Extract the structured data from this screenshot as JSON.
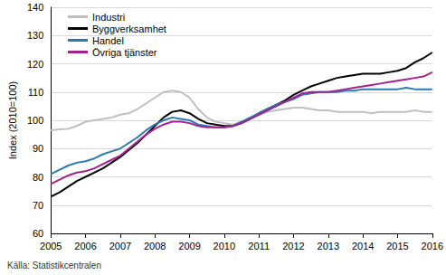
{
  "chart_data": {
    "type": "line",
    "y_label": "Index (2010=100)",
    "source": "Källa: Statistikcentralen",
    "x": [
      2005,
      2005.25,
      2005.5,
      2005.75,
      2006,
      2006.25,
      2006.5,
      2006.75,
      2007,
      2007.25,
      2007.5,
      2007.75,
      2008,
      2008.25,
      2008.5,
      2008.75,
      2009,
      2009.25,
      2009.5,
      2009.75,
      2010,
      2010.25,
      2010.5,
      2010.75,
      2011,
      2011.25,
      2011.5,
      2011.75,
      2012,
      2012.25,
      2012.5,
      2012.75,
      2013,
      2013.25,
      2013.5,
      2013.75,
      2014,
      2014.25,
      2014.5,
      2014.75,
      2015,
      2015.25,
      2015.5,
      2015.75,
      2016
    ],
    "series": [
      {
        "name": "Industri",
        "color": "#bfbfbf",
        "values": [
          96.5,
          96.8,
          97,
          98,
          99.5,
          100,
          100.5,
          101,
          102,
          102.5,
          104,
          106,
          108,
          110,
          110.5,
          110,
          108,
          104,
          101,
          99.5,
          99,
          98.5,
          99.5,
          100.5,
          102,
          103,
          103.5,
          104,
          104.5,
          104.5,
          104,
          103.5,
          103.5,
          103,
          103,
          103,
          103,
          102.5,
          103,
          103,
          103,
          103,
          103.5,
          103,
          103
        ]
      },
      {
        "name": "Byggverksamhet",
        "color": "#000000",
        "values": [
          73,
          74.5,
          76.5,
          78.5,
          80,
          81.5,
          83,
          85,
          87,
          89.5,
          92,
          95,
          98,
          101,
          103,
          103.5,
          102.5,
          100.5,
          99,
          98.5,
          98,
          98,
          99,
          100.5,
          102.5,
          104,
          105.5,
          107,
          109,
          110.5,
          112,
          113,
          114,
          115,
          115.5,
          116,
          116.5,
          116.5,
          116.5,
          117,
          117.5,
          118.5,
          120.5,
          122,
          124
        ]
      },
      {
        "name": "Handel",
        "color": "#2a7ab5",
        "values": [
          81,
          82.5,
          84,
          85,
          85.5,
          86.5,
          88,
          89,
          90,
          92,
          94,
          96.5,
          98.5,
          100,
          101,
          100.5,
          100,
          98.5,
          98,
          97.5,
          97.5,
          98,
          99.5,
          101,
          102.5,
          104,
          105.5,
          106.5,
          107.5,
          109,
          109.5,
          110,
          110,
          110,
          110.5,
          110.5,
          111,
          111,
          111,
          111,
          111,
          111.5,
          111,
          111,
          111
        ]
      },
      {
        "name": "Övriga tjänster",
        "color": "#a6218f",
        "values": [
          77.5,
          79,
          80.5,
          81.5,
          82,
          83,
          84.5,
          86,
          87.5,
          90,
          92.5,
          95,
          97,
          98.5,
          99.5,
          99.5,
          99,
          98,
          97.5,
          97.5,
          97.5,
          98,
          99,
          100.5,
          102,
          103.5,
          105,
          106.5,
          108,
          109.5,
          110,
          110,
          110,
          110.5,
          111,
          111.5,
          112,
          112.5,
          113,
          113.5,
          114,
          114.5,
          115,
          115.5,
          117
        ]
      }
    ],
    "xlim": [
      2005,
      2016
    ],
    "xticks": [
      2005,
      2006,
      2007,
      2008,
      2009,
      2010,
      2011,
      2012,
      2013,
      2014,
      2015,
      2016
    ],
    "ylim": [
      60,
      140
    ],
    "yticks": [
      60,
      70,
      80,
      90,
      100,
      110,
      120,
      130,
      140
    ],
    "grid": true,
    "legend": "top-left"
  }
}
